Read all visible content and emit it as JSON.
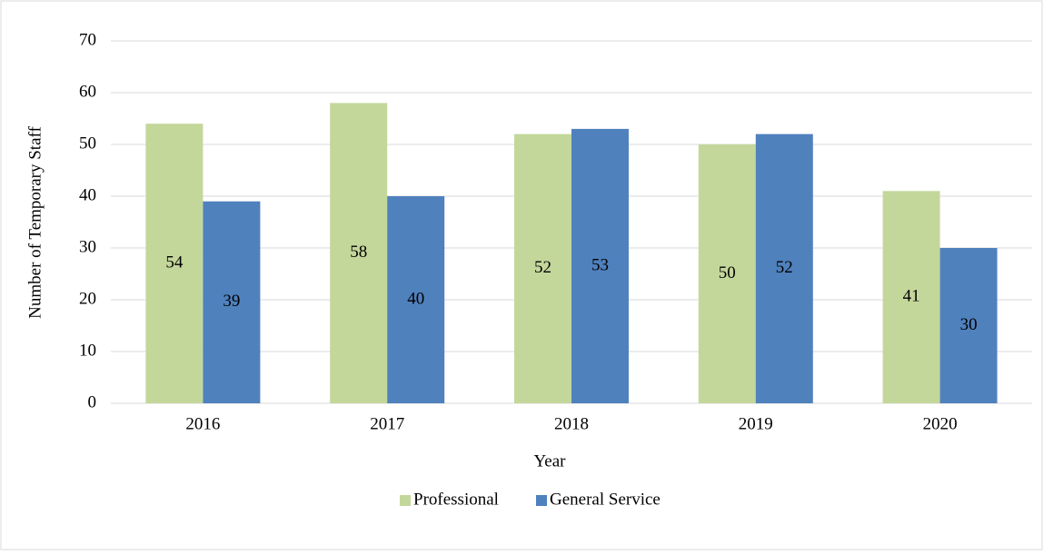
{
  "chart_data": {
    "type": "bar",
    "x_label": "Year",
    "y_label": "Number of Temporary Staff",
    "categories": [
      "2016",
      "2017",
      "2018",
      "2019",
      "2020"
    ],
    "series": [
      {
        "name": "Professional",
        "color": "#c4d79b",
        "values": [
          54,
          58,
          52,
          50,
          41
        ]
      },
      {
        "name": "General Service",
        "color": "#4f81bd",
        "values": [
          39,
          40,
          53,
          52,
          30
        ]
      }
    ],
    "ylim": [
      0,
      70
    ],
    "yticks": [
      0,
      10,
      20,
      30,
      40,
      50,
      60,
      70
    ],
    "grid": true,
    "legend": "bottom"
  }
}
